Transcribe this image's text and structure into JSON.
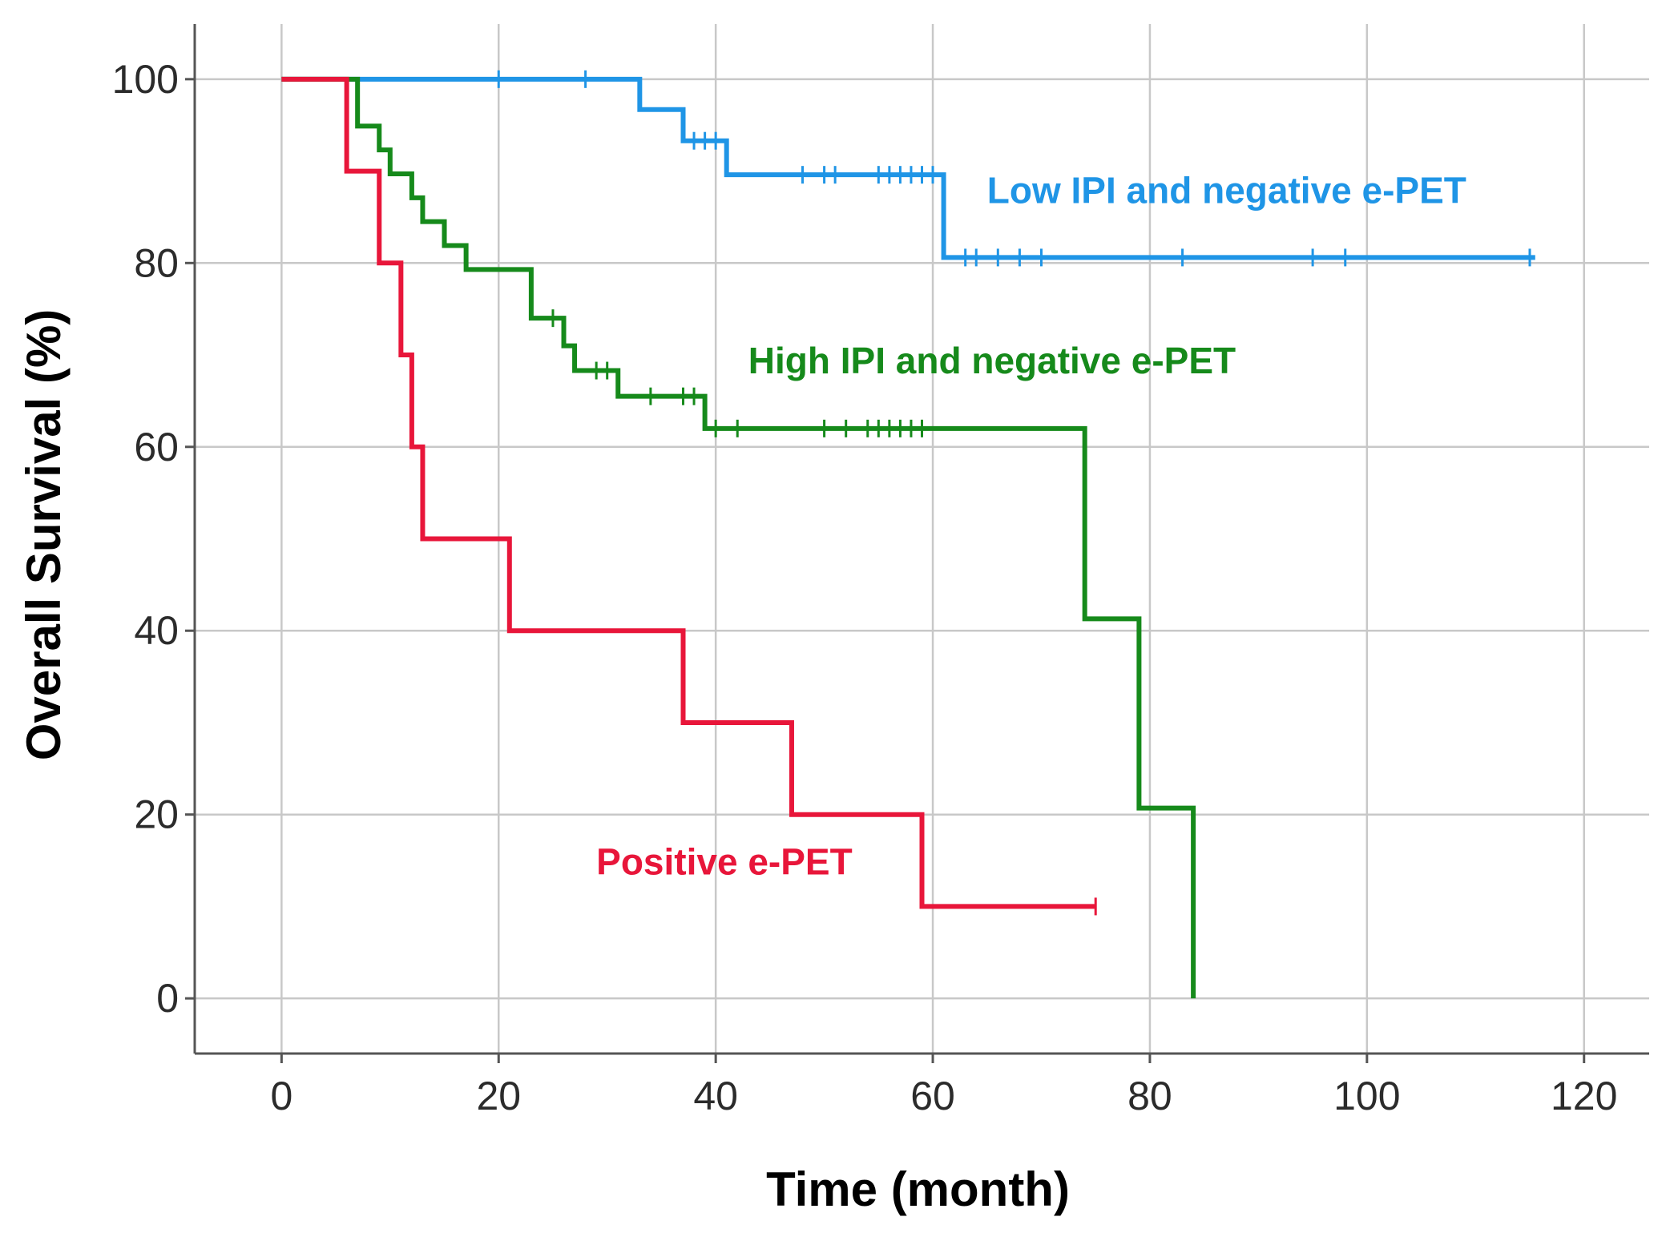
{
  "chart_data": {
    "type": "line",
    "subtype": "kaplan-meier-step",
    "title": "",
    "xlabel": "Time (month)",
    "ylabel": "Overall Survival (%)",
    "xlim": [
      -8,
      126
    ],
    "ylim": [
      -6,
      106
    ],
    "xticks": [
      0,
      20,
      40,
      60,
      80,
      100,
      120
    ],
    "yticks": [
      0,
      20,
      40,
      60,
      80,
      100
    ],
    "grid": true,
    "series": [
      {
        "name": "Low IPI and negative e-PET",
        "color": "#1f95e6",
        "label_position": {
          "x": 65,
          "y": 86.5
        },
        "steps": [
          [
            0,
            100
          ],
          [
            33,
            96.7
          ],
          [
            37,
            93.3
          ],
          [
            41,
            89.6
          ],
          [
            61,
            80.6
          ]
        ],
        "end_time": 115.5,
        "censor_times": [
          20,
          28,
          38,
          39,
          40,
          48,
          50,
          51,
          55,
          56,
          57,
          58,
          59,
          60,
          63,
          64,
          66,
          68,
          70,
          83,
          95,
          98,
          115
        ]
      },
      {
        "name": "High IPI and negative e-PET",
        "color": "#168a1b",
        "label_position": {
          "x": 43,
          "y": 68
        },
        "steps": [
          [
            0,
            100
          ],
          [
            7,
            94.9
          ],
          [
            9,
            92.3
          ],
          [
            10,
            89.7
          ],
          [
            12,
            87.1
          ],
          [
            13,
            84.5
          ],
          [
            15,
            81.9
          ],
          [
            17,
            79.3
          ],
          [
            23,
            74.0
          ],
          [
            26,
            71.0
          ],
          [
            27,
            68.3
          ],
          [
            31,
            65.5
          ],
          [
            39,
            62.0
          ],
          [
            74,
            41.3
          ],
          [
            79,
            20.7
          ],
          [
            84,
            0
          ]
        ],
        "end_time": 84,
        "censor_times": [
          25,
          29,
          30,
          34,
          37,
          38,
          40,
          42,
          50,
          52,
          54,
          55,
          56,
          57,
          58,
          59
        ]
      },
      {
        "name": "Positive e-PET",
        "color": "#e8163a",
        "label_position": {
          "x": 29,
          "y": 13.5
        },
        "steps": [
          [
            0,
            100
          ],
          [
            6,
            90
          ],
          [
            9,
            80
          ],
          [
            11,
            70
          ],
          [
            12,
            60
          ],
          [
            13,
            50
          ],
          [
            21,
            40
          ],
          [
            37,
            30
          ],
          [
            47,
            20
          ],
          [
            59,
            10
          ]
        ],
        "end_time": 75,
        "censor_times": [
          75
        ]
      }
    ]
  }
}
